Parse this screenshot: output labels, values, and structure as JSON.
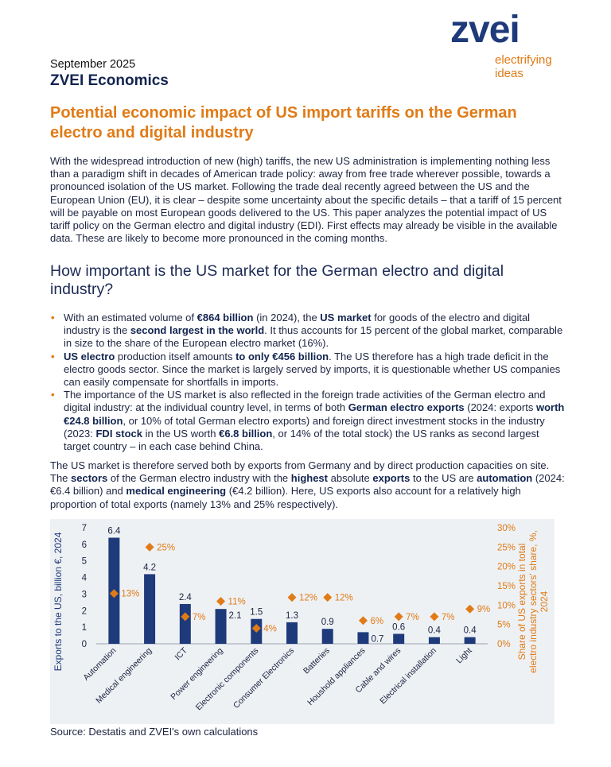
{
  "header": {
    "logo_word": "zvei",
    "logo_tagline_1": "electrifying",
    "logo_tagline_2": "ideas",
    "date": "September 2025",
    "series": "ZVEI Economics"
  },
  "title": "Potential economic impact of US import tariffs on the German electro and digital industry",
  "intro": "With the widespread introduction of new (high) tariffs, the new US administration is implementing nothing less than a paradigm shift in decades of American trade policy: away from free trade wherever possible, towards a pronounced isolation of the US market. Following the trade deal recently agreed between the US and the European Union (EU), it is clear – despite some uncertainty about the specific details – that a tariff of 15 percent will be payable on most European goods delivered to the US. This paper analyzes the potential impact of US tariff policy on the German electro and digital industry (EDI). First effects may already be visible in the available data. These are likely to become more pronounced in the coming months.",
  "section_heading": "How important is the US market for the German electro and digital industry?",
  "bullets": [
    {
      "t1": "With an estimated volume of ",
      "b1": "€864 billion",
      "t2": " (in 2024), the ",
      "b2": "US market",
      "t3": " for goods of the electro and digital industry is the ",
      "b3": "second largest in the world",
      "t4": ". It thus accounts for 15 percent of the global market, comparable in size to the share of the European electro market (16%)."
    },
    {
      "b1": "US electro",
      "t1": " production itself amounts ",
      "b2": "to only €456 billion",
      "t2": ". The US therefore has a high trade deficit in the electro goods sector. Since the market is largely served by imports, it is questionable whether US companies can easily compensate for shortfalls in imports."
    },
    {
      "t1": "The importance of the US market is also reflected in the foreign trade activities of the German electro and digital industry: at the individual country level, in terms of both ",
      "b1": "German electro exports",
      "t2": " (2024: exports ",
      "b2": "worth €24.8 billion",
      "t3": ", or 10% of total German electro exports) and foreign direct investment stocks in the industry (2023: ",
      "b3": "FDI stock",
      "t4": " in the US worth ",
      "b4": "€6.8 billion",
      "t5": ", or 14% of the total stock) the US ranks as second largest target country – in each case behind China."
    }
  ],
  "summary": {
    "t1": "The US market is therefore served both by exports from Germany and by direct production capacities on site. The ",
    "b1": "sectors",
    "t2": " of the German electro industry with the ",
    "b2": "highest",
    "t3": " absolute ",
    "b3": "exports",
    "t4": " to the US are ",
    "b4": "automation",
    "t5": " (2024: €6.4 billion) and ",
    "b5": "medical engineering",
    "t6": " (€4.2 billion). Here, US exports also account for a relatively high proportion of total exports (namely 13% and 25% respectively)."
  },
  "chart_data": {
    "type": "bar",
    "categories": [
      "Automation",
      "Medical engineering",
      "ICT",
      "Power engineering",
      "Electronic components",
      "Consumer Electronics",
      "Batteries",
      "Houshold appliances",
      "Cable and wires",
      "Electrical installation",
      "Light"
    ],
    "series": [
      {
        "values": [
          6.4,
          4.2,
          2.4,
          2.1,
          1.5,
          1.3,
          0.9,
          0.7,
          0.6,
          0.4,
          0.4
        ],
        "axis": "left",
        "mark": "bar",
        "color": "#1f4e8c"
      },
      {
        "values": [
          13,
          25,
          7,
          11,
          4,
          12,
          12,
          6,
          7,
          7,
          9
        ],
        "axis": "right",
        "mark": "diamond",
        "color": "#e07b17"
      }
    ],
    "value_labels": [
      "6.4",
      "4.2",
      "2.4",
      "2.1",
      "1.5",
      "1.3",
      "0.9",
      "0.7",
      "0.6",
      "0.4",
      "0.4"
    ],
    "share_labels": [
      "13%",
      "25%",
      "7%",
      "11%",
      "4%",
      "12%",
      "12%",
      "6%",
      "7%",
      "7%",
      "9%"
    ],
    "ylabel": "Exports to the US, billion €, 2024",
    "y2label_line1": "Share of US exports in total",
    "y2label_line2": "electro industry sectors' share, %,",
    "y2label_line3": "2024",
    "ylim": [
      0,
      7
    ],
    "y_ticks": [
      "0",
      "1",
      "2",
      "3",
      "4",
      "5",
      "6",
      "7"
    ],
    "y2lim": [
      0,
      30
    ],
    "y2_ticks": [
      "0%",
      "5%",
      "10%",
      "15%",
      "20%",
      "25%",
      "30%"
    ],
    "grid": false,
    "legend": "none"
  },
  "source": "Source: Destatis and ZVEI's own calculations"
}
